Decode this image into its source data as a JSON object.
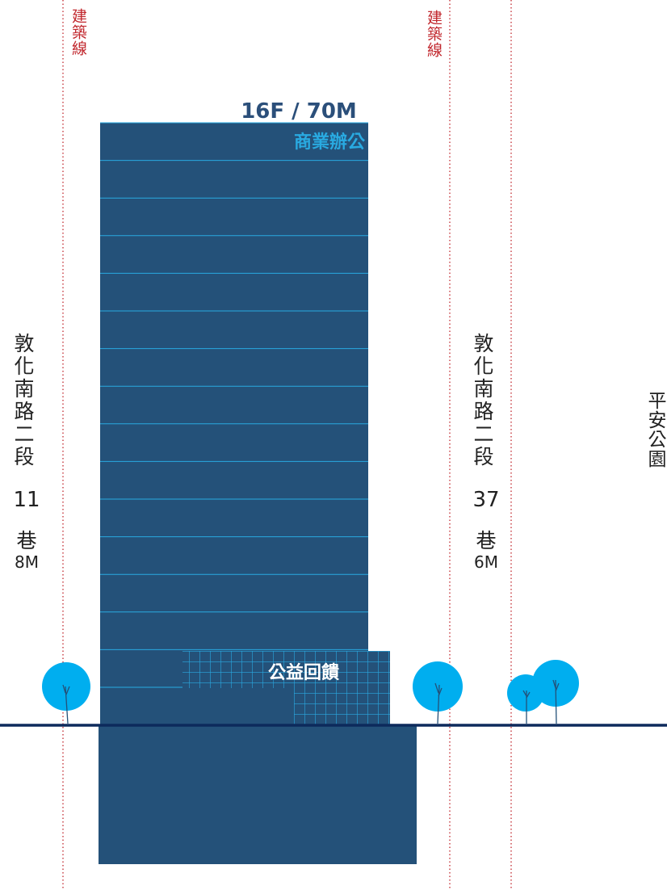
{
  "building_lines": [
    {
      "label": "建築線"
    },
    {
      "label": "建築線"
    }
  ],
  "tower": {
    "height_label": "16F / 70M",
    "use": "商業辦公"
  },
  "podium": {
    "label": "公益回饋"
  },
  "roads": [
    {
      "name": "敦化南路二段",
      "lane": "11",
      "suffix": "巷",
      "width": "8M"
    },
    {
      "name": "敦化南路二段",
      "lane": "37",
      "suffix": "巷",
      "width": "6M"
    }
  ],
  "park": {
    "name": "平安公園"
  }
}
